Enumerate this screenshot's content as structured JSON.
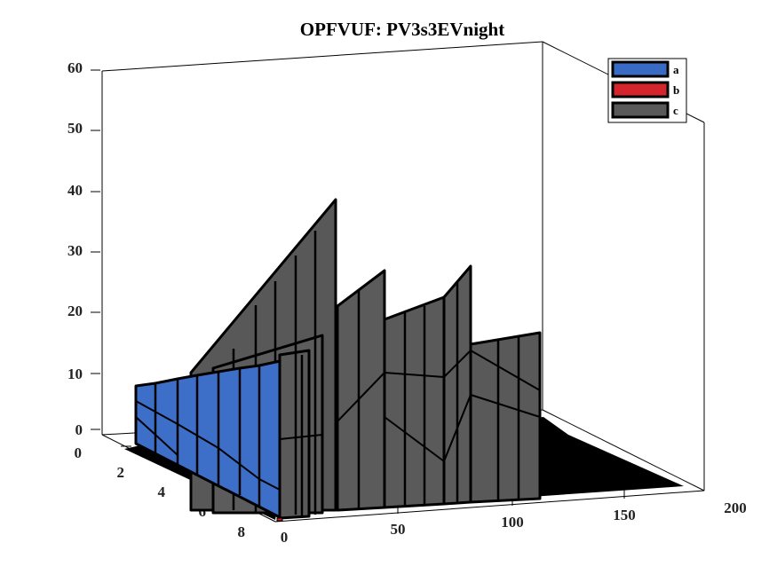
{
  "chart_data": {
    "type": "3d-area",
    "title": "OPFVUF: PV3s3EVnight",
    "xlabel": "",
    "ylabel": "",
    "zlabel": "",
    "x_ticks": [
      "0",
      "50",
      "100",
      "150",
      "200"
    ],
    "y_ticks": [
      "0",
      "2",
      "4",
      "6",
      "8"
    ],
    "z_ticks": [
      "0",
      "10",
      "20",
      "30",
      "40",
      "50",
      "60"
    ],
    "xlim": [
      0,
      200
    ],
    "ylim": [
      0,
      9
    ],
    "zlim": [
      0,
      60
    ],
    "grid": false,
    "legend_position": "top-right",
    "series": [
      {
        "name": "a",
        "color": "#3a6bc4"
      },
      {
        "name": "b",
        "color": "#d4242c"
      },
      {
        "name": "c",
        "color": "#595959"
      }
    ]
  }
}
